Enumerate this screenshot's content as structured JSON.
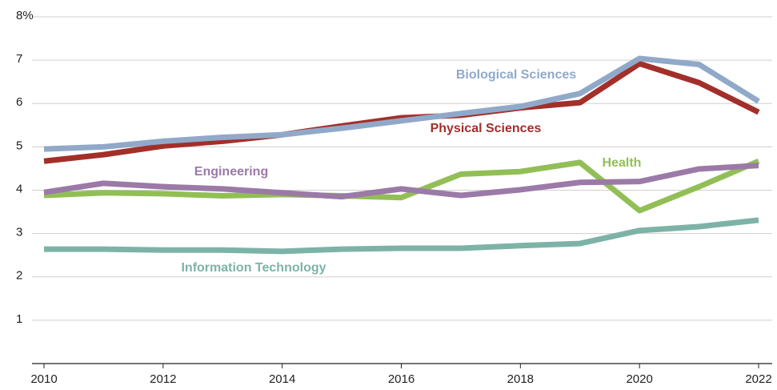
{
  "chart_data": {
    "type": "line",
    "x": [
      2010,
      2011,
      2012,
      2013,
      2014,
      2015,
      2016,
      2017,
      2018,
      2019,
      2020,
      2021,
      2022
    ],
    "xlim": [
      2010,
      2022
    ],
    "xticks": [
      2010,
      2012,
      2014,
      2016,
      2018,
      2020,
      2022
    ],
    "ylim": [
      0,
      8
    ],
    "yticks": [
      1,
      2,
      3,
      4,
      5,
      6,
      7,
      {
        "value": 8,
        "label": "8%"
      }
    ],
    "grid": true,
    "series": [
      {
        "name": "Information Technology",
        "color": "#7db3a7",
        "values": [
          2.64,
          2.64,
          2.62,
          2.62,
          2.59,
          2.64,
          2.66,
          2.66,
          2.72,
          2.77,
          3.07,
          3.16,
          3.31
        ]
      },
      {
        "name": "Health",
        "color": "#92bf55",
        "values": [
          3.88,
          3.94,
          3.92,
          3.87,
          3.9,
          3.87,
          3.83,
          4.37,
          4.43,
          4.64,
          3.53,
          4.08,
          4.67
        ]
      },
      {
        "name": "Engineering",
        "color": "#9b7aa7",
        "values": [
          3.95,
          4.16,
          4.08,
          4.03,
          3.94,
          3.85,
          4.03,
          3.88,
          4.01,
          4.18,
          4.2,
          4.49,
          4.57
        ]
      },
      {
        "name": "Physical Sciences",
        "color": "#a32f2a",
        "values": [
          4.67,
          4.82,
          5.02,
          5.13,
          5.28,
          5.48,
          5.67,
          5.73,
          5.9,
          6.02,
          6.92,
          6.48,
          5.8
        ]
      },
      {
        "name": "Biological Sciences",
        "color": "#91a9c9",
        "values": [
          4.95,
          5.0,
          5.13,
          5.22,
          5.28,
          5.43,
          5.6,
          5.77,
          5.93,
          6.23,
          7.04,
          6.9,
          6.05
        ]
      }
    ]
  }
}
